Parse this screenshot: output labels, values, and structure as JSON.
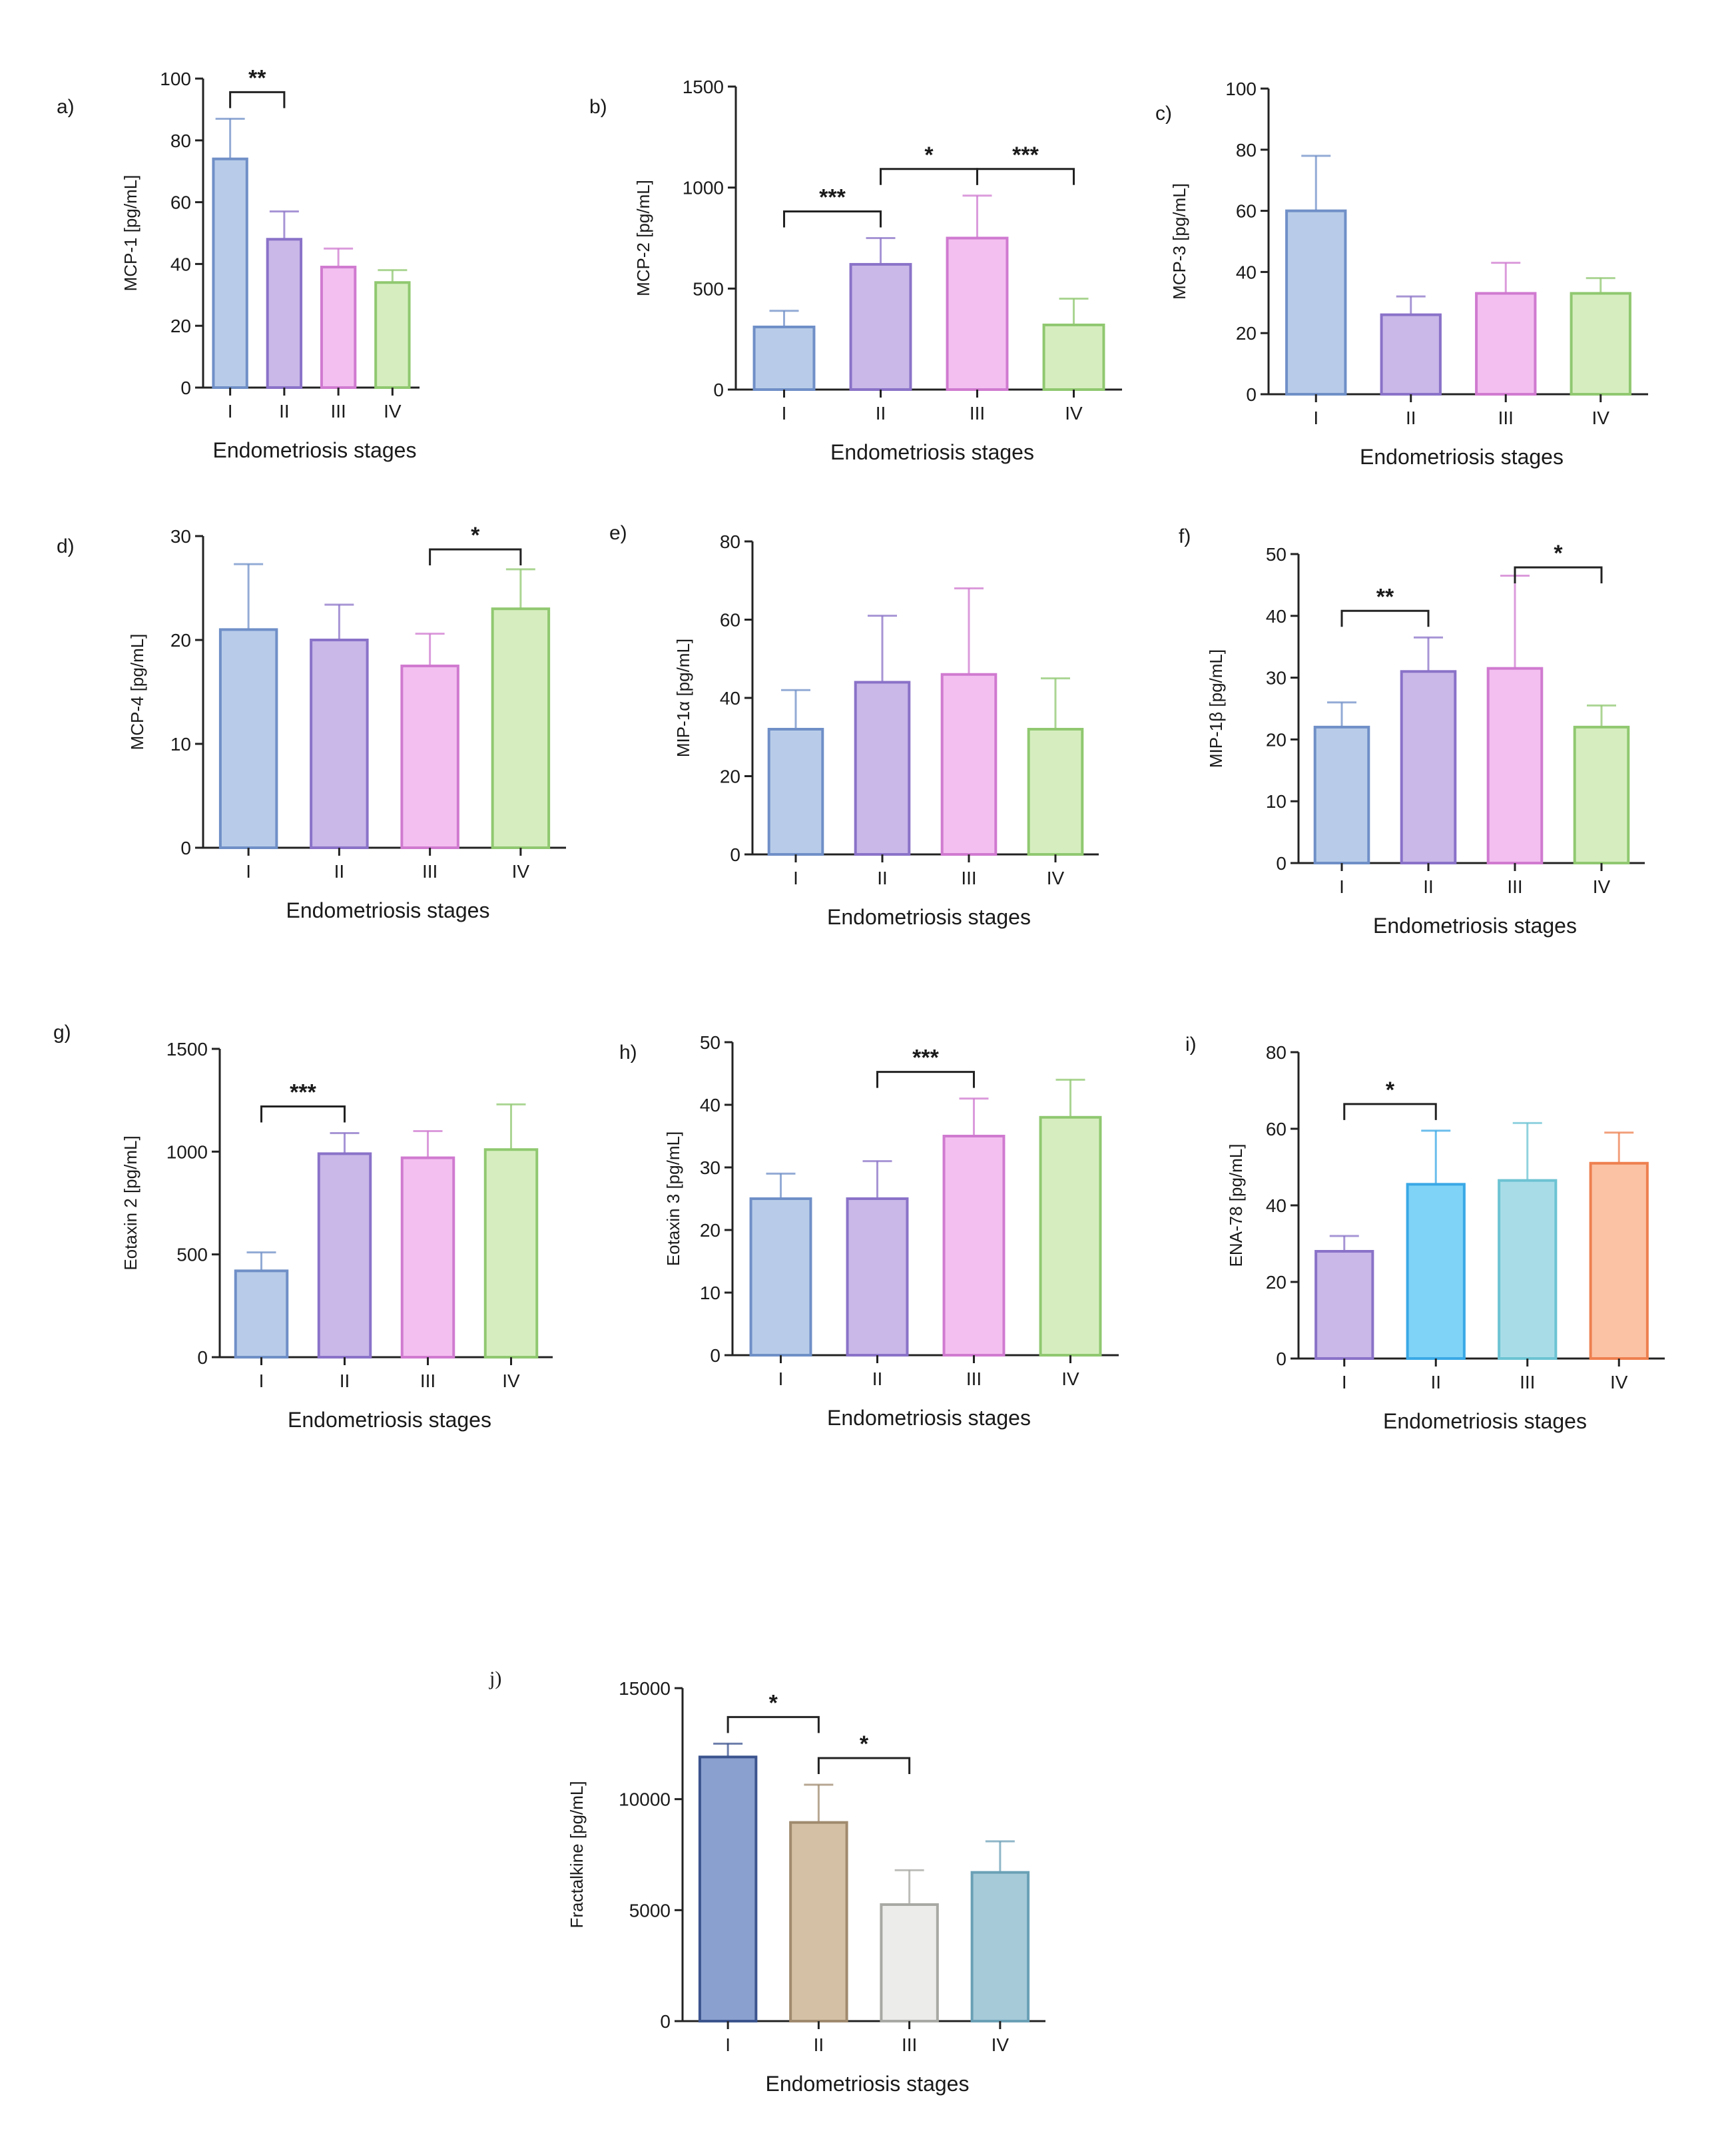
{
  "chart_data": [
    {
      "panel": "a)",
      "type": "bar",
      "categories": [
        "I",
        "II",
        "III",
        "IV"
      ],
      "values": [
        74,
        48,
        39,
        34
      ],
      "errors": [
        13,
        9,
        6,
        4
      ],
      "ylabel": "MCP-1 [pg/mL]",
      "xlabel": "Endometriosis stages",
      "ylim": [
        0,
        100
      ],
      "yticks": [
        0,
        20,
        40,
        60,
        80,
        100
      ],
      "colors": [
        "#b8cce9",
        "#c9b8e8",
        "#f3bff0",
        "#d6eebf"
      ],
      "edges": [
        "#6f8fc7",
        "#8a72c8",
        "#d07ad0",
        "#90c870"
      ],
      "sig": [
        {
          "from": 0,
          "to": 1,
          "label": "**"
        }
      ]
    },
    {
      "panel": "b)",
      "type": "bar",
      "categories": [
        "I",
        "II",
        "III",
        "IV"
      ],
      "values": [
        310,
        620,
        750,
        320
      ],
      "errors": [
        80,
        130,
        210,
        130
      ],
      "ylabel": "MCP-2 [pg/mL]",
      "xlabel": "Endometriosis stages",
      "ylim": [
        0,
        1500
      ],
      "yticks": [
        0,
        500,
        1000,
        1500
      ],
      "colors": [
        "#b8cce9",
        "#c9b8e8",
        "#f3bff0",
        "#d6eebf"
      ],
      "edges": [
        "#6f8fc7",
        "#8a72c8",
        "#d07ad0",
        "#90c870"
      ],
      "sig": [
        {
          "from": 0,
          "to": 1,
          "label": "***"
        },
        {
          "from": 1,
          "to": 2,
          "label": "*"
        },
        {
          "from": 2,
          "to": 3,
          "label": "***"
        }
      ]
    },
    {
      "panel": "c)",
      "type": "bar",
      "categories": [
        "I",
        "II",
        "III",
        "IV"
      ],
      "values": [
        60,
        26,
        33,
        33
      ],
      "errors": [
        18,
        6,
        10,
        5
      ],
      "ylabel": "MCP-3 [pg/mL]",
      "xlabel": "Endometriosis stages",
      "ylim": [
        0,
        100
      ],
      "yticks": [
        0,
        20,
        40,
        60,
        80,
        100
      ],
      "colors": [
        "#b8cce9",
        "#c9b8e8",
        "#f3bff0",
        "#d6eebf"
      ],
      "edges": [
        "#6f8fc7",
        "#8a72c8",
        "#d07ad0",
        "#90c870"
      ],
      "sig": []
    },
    {
      "panel": "d)",
      "type": "bar",
      "categories": [
        "I",
        "II",
        "III",
        "IV"
      ],
      "values": [
        21,
        20,
        17.5,
        23
      ],
      "errors": [
        6.3,
        3.4,
        3.1,
        3.8
      ],
      "ylabel": "MCP-4 [pg/mL]",
      "xlabel": "Endometriosis stages",
      "ylim": [
        0,
        30
      ],
      "yticks": [
        0,
        10,
        20,
        30
      ],
      "colors": [
        "#b8cce9",
        "#c9b8e8",
        "#f3bff0",
        "#d6eebf"
      ],
      "edges": [
        "#6f8fc7",
        "#8a72c8",
        "#d07ad0",
        "#90c870"
      ],
      "sig": [
        {
          "from": 2,
          "to": 3,
          "label": "*"
        }
      ]
    },
    {
      "panel": "e)",
      "type": "bar",
      "categories": [
        "I",
        "II",
        "III",
        "IV"
      ],
      "values": [
        32,
        44,
        46,
        32
      ],
      "errors": [
        10,
        17,
        22,
        13
      ],
      "ylabel": "MIP-1α [pg/mL]",
      "xlabel": "Endometriosis stages",
      "ylim": [
        0,
        80
      ],
      "yticks": [
        0,
        20,
        40,
        60,
        80
      ],
      "colors": [
        "#b8cce9",
        "#c9b8e8",
        "#f3bff0",
        "#d6eebf"
      ],
      "edges": [
        "#6f8fc7",
        "#8a72c8",
        "#d07ad0",
        "#90c870"
      ],
      "sig": []
    },
    {
      "panel": "f)",
      "type": "bar",
      "categories": [
        "I",
        "II",
        "III",
        "IV"
      ],
      "values": [
        22,
        31,
        31.5,
        22
      ],
      "errors": [
        4,
        5.5,
        15,
        3.5
      ],
      "ylabel": "MIP-1β [pg/mL]",
      "xlabel": "Endometriosis stages",
      "ylim": [
        0,
        50
      ],
      "yticks": [
        0,
        10,
        20,
        30,
        40,
        50
      ],
      "colors": [
        "#b8cce9",
        "#c9b8e8",
        "#f3bff0",
        "#d6eebf"
      ],
      "edges": [
        "#6f8fc7",
        "#8a72c8",
        "#d07ad0",
        "#90c870"
      ],
      "sig": [
        {
          "from": 0,
          "to": 1,
          "label": "**"
        },
        {
          "from": 2,
          "to": 3,
          "label": "*"
        }
      ]
    },
    {
      "panel": "g)",
      "type": "bar",
      "categories": [
        "I",
        "II",
        "III",
        "IV"
      ],
      "values": [
        420,
        990,
        970,
        1010
      ],
      "errors": [
        90,
        100,
        130,
        220
      ],
      "ylabel": "Eotaxin 2 [pg/mL]",
      "xlabel": "Endometriosis stages",
      "ylim": [
        0,
        1500
      ],
      "yticks": [
        0,
        500,
        1000,
        1500
      ],
      "colors": [
        "#b8cce9",
        "#c9b8e8",
        "#f3bff0",
        "#d6eebf"
      ],
      "edges": [
        "#6f8fc7",
        "#8a72c8",
        "#d07ad0",
        "#90c870"
      ],
      "sig": [
        {
          "from": 0,
          "to": 1,
          "label": "***"
        }
      ]
    },
    {
      "panel": "h)",
      "type": "bar",
      "categories": [
        "I",
        "II",
        "III",
        "IV"
      ],
      "values": [
        25,
        25,
        35,
        38
      ],
      "errors": [
        4,
        6,
        6,
        6
      ],
      "ylabel": "Eotaxin 3 [pg/mL]",
      "xlabel": "Endometriosis stages",
      "ylim": [
        0,
        50
      ],
      "yticks": [
        0,
        10,
        20,
        30,
        40,
        50
      ],
      "colors": [
        "#b8cce9",
        "#c9b8e8",
        "#f3bff0",
        "#d6eebf"
      ],
      "edges": [
        "#6f8fc7",
        "#8a72c8",
        "#d07ad0",
        "#90c870"
      ],
      "sig": [
        {
          "from": 1,
          "to": 2,
          "label": "***"
        }
      ]
    },
    {
      "panel": "i)",
      "type": "bar",
      "categories": [
        "I",
        "II",
        "III",
        "IV"
      ],
      "values": [
        28,
        45.5,
        46.5,
        51
      ],
      "errors": [
        4,
        14,
        15,
        8
      ],
      "ylabel": "ENA-78 [pg/mL]",
      "xlabel": "Endometriosis stages",
      "ylim": [
        0,
        80
      ],
      "yticks": [
        0,
        20,
        40,
        60,
        80
      ],
      "colors": [
        "#c9b8e8",
        "#7ed3f7",
        "#a8dde8",
        "#fbc2a4"
      ],
      "edges": [
        "#8a72c8",
        "#3aa8e6",
        "#6cc3d3",
        "#ee8050"
      ],
      "sig": [
        {
          "from": 0,
          "to": 1,
          "label": "*"
        }
      ]
    },
    {
      "panel": "j)",
      "type": "bar",
      "categories": [
        "I",
        "II",
        "III",
        "IV"
      ],
      "values": [
        11900,
        8950,
        5250,
        6700
      ],
      "errors": [
        600,
        1700,
        1550,
        1400
      ],
      "ylabel": "Fractalkine [pg/mL]",
      "xlabel": "Endometriosis stages",
      "ylim": [
        0,
        15000
      ],
      "yticks": [
        0,
        5000,
        10000,
        15000
      ],
      "colors": [
        "#8aa0ce",
        "#d4c0a4",
        "#ececea",
        "#a6cad8"
      ],
      "edges": [
        "#3c548e",
        "#a08a6e",
        "#a8a8a4",
        "#6aa0b6"
      ],
      "sig": [
        {
          "from": 0,
          "to": 1,
          "label": "*"
        },
        {
          "from": 1,
          "to": 2,
          "label": "*"
        }
      ]
    }
  ]
}
